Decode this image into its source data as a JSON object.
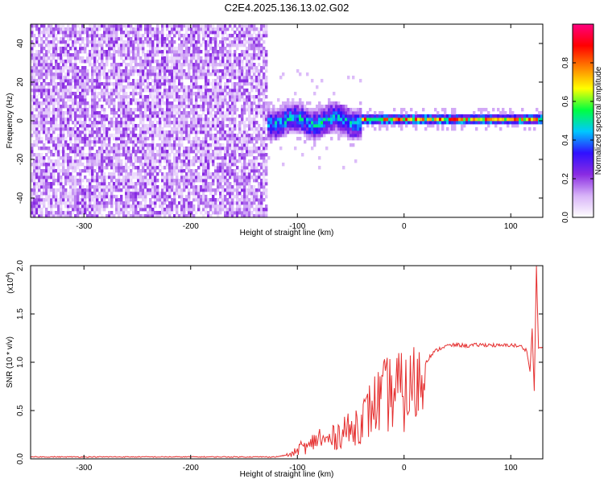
{
  "title": "C2E4.2025.136.13.02.G02",
  "chart_data": [
    {
      "type": "heatmap",
      "name": "spectrogram",
      "xlabel": "Height of straight line (km)",
      "ylabel": "Frequency (Hz)",
      "xlim": [
        -350,
        130
      ],
      "ylim": [
        -50,
        50
      ],
      "x_ticks": [
        -300,
        -200,
        -100,
        0,
        100
      ],
      "y_ticks": [
        -40,
        -20,
        0,
        20,
        40
      ],
      "colorbar": {
        "label": "Normalized spectral amplitude",
        "range": [
          0.0,
          1.0
        ],
        "ticks": [
          "0.0",
          "0.2",
          "0.4",
          "0.6",
          "0.8"
        ],
        "colors": [
          "#ffffff",
          "#d8b4f8",
          "#8a2be2",
          "#3010ff",
          "#00c8ff",
          "#00ff40",
          "#ffff00",
          "#ff8000",
          "#ff0000",
          "#ff0080"
        ]
      },
      "regions": [
        {
          "x": [
            -350,
            -130
          ],
          "freq": [
            -50,
            50
          ],
          "amplitude": 0.12,
          "pattern": "noise"
        },
        {
          "x": [
            -130,
            -40
          ],
          "freq": [
            -8,
            8
          ],
          "amplitude": 0.45,
          "pattern": "turbulent"
        },
        {
          "x": [
            -40,
            130
          ],
          "freq": [
            -2,
            3
          ],
          "amplitude": 0.7,
          "pattern": "tone"
        }
      ]
    },
    {
      "type": "line",
      "name": "snr",
      "xlabel": "Height of straight line (km)",
      "ylabel": "SNR (10 * v/v)",
      "scale_note": "(x10",
      "scale_exp": "4",
      "xlim": [
        -350,
        130
      ],
      "ylim": [
        0,
        2.0
      ],
      "x_ticks": [
        -300,
        -200,
        -100,
        0,
        100
      ],
      "y_ticks": [
        "0.0",
        "0.5",
        "1.0",
        "1.5",
        "2.0"
      ],
      "color": "#e53030",
      "series": [
        {
          "x": [
            -350,
            -300,
            -250,
            -200,
            -150,
            -120,
            -105,
            -100,
            -95,
            -90,
            -85,
            -80,
            -75,
            -70,
            -65,
            -60,
            -55,
            -50,
            -45,
            -40,
            -35,
            -30,
            -25,
            -20,
            -15,
            -10,
            -5,
            0,
            5,
            10,
            15,
            20,
            25,
            30,
            35,
            40,
            50,
            60,
            70,
            80,
            90,
            100,
            110,
            115,
            118,
            120,
            122,
            124,
            126,
            130
          ],
          "y": [
            0.02,
            0.02,
            0.02,
            0.02,
            0.02,
            0.02,
            0.05,
            0.1,
            0.15,
            0.12,
            0.2,
            0.25,
            0.2,
            0.22,
            0.25,
            0.3,
            0.35,
            0.3,
            0.4,
            0.45,
            0.5,
            0.6,
            0.65,
            0.7,
            0.75,
            0.75,
            0.8,
            0.72,
            0.8,
            0.85,
            0.9,
            1.0,
            1.07,
            1.12,
            1.15,
            1.17,
            1.18,
            1.17,
            1.18,
            1.18,
            1.17,
            1.18,
            1.16,
            1.12,
            0.9,
            1.35,
            0.7,
            2.0,
            1.15,
            1.15
          ]
        }
      ]
    }
  ]
}
